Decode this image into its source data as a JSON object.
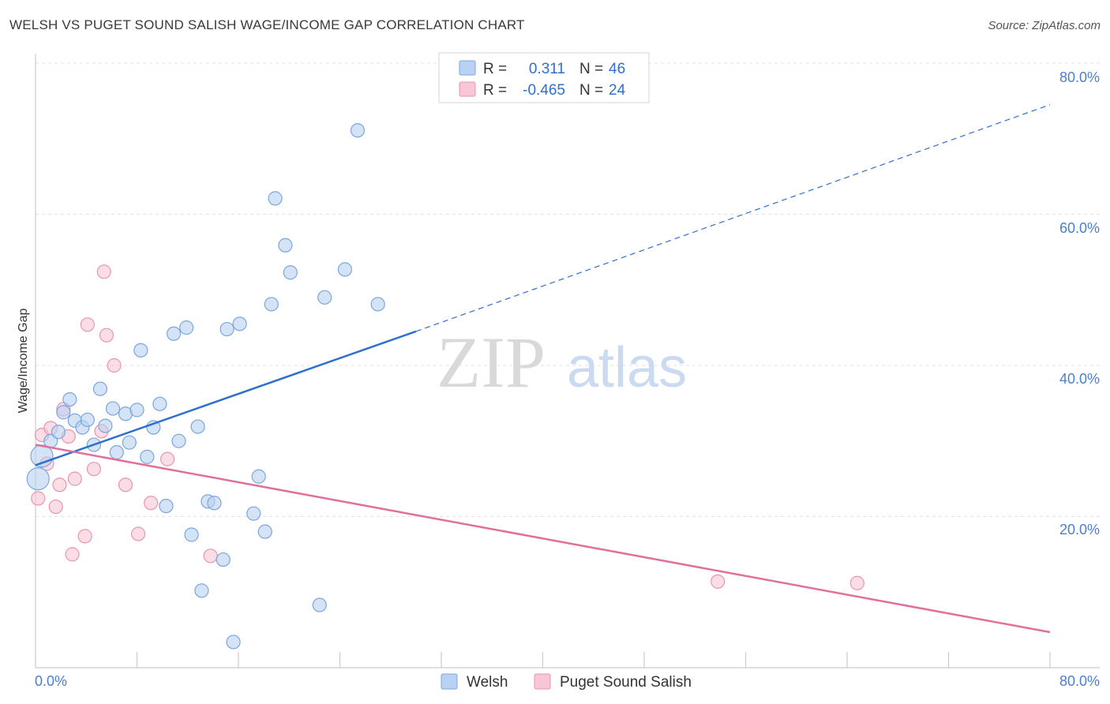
{
  "title": "WELSH VS PUGET SOUND SALISH WAGE/INCOME GAP CORRELATION CHART",
  "source": "Source: ZipAtlas.com",
  "watermark": {
    "zip": "ZIP",
    "atlas": "atlas"
  },
  "legend": {
    "rows": [
      {
        "r_label": "R =",
        "r_value": "0.311",
        "n_label": "N =",
        "n_value": "46"
      },
      {
        "r_label": "R =",
        "r_value": "-0.465",
        "n_label": "N =",
        "n_value": "24"
      }
    ]
  },
  "bottom_legend": {
    "welsh": "Welsh",
    "puget": "Puget Sound Salish"
  },
  "axes": {
    "ylabel": "Wage/Income Gap",
    "x_min_label": "0.0%",
    "x_max_label": "80.0%",
    "y_ticks": [
      "80.0%",
      "60.0%",
      "40.0%",
      "20.0%"
    ]
  },
  "colors": {
    "welsh_fill": "#b9d1f2",
    "welsh_stroke": "#7aa6df",
    "welsh_line": "#2f6fcf",
    "puget_fill": "#f8c6d5",
    "puget_stroke": "#e995b0",
    "puget_line": "#e0709a"
  },
  "chart_data": {
    "type": "scatter",
    "xlabel": "",
    "ylabel": "Wage/Income Gap",
    "xlim": [
      0,
      80
    ],
    "ylim": [
      0,
      80
    ],
    "grid": true,
    "series": [
      {
        "name": "Welsh",
        "points": [
          [
            0.2,
            25.0
          ],
          [
            0.5,
            28.0
          ],
          [
            1.2,
            30.0
          ],
          [
            1.8,
            31.2
          ],
          [
            2.2,
            33.8
          ],
          [
            2.7,
            35.5
          ],
          [
            3.1,
            32.7
          ],
          [
            3.7,
            31.8
          ],
          [
            4.1,
            32.8
          ],
          [
            4.6,
            29.5
          ],
          [
            5.1,
            36.9
          ],
          [
            5.5,
            32.0
          ],
          [
            6.1,
            34.3
          ],
          [
            6.4,
            28.5
          ],
          [
            7.1,
            33.6
          ],
          [
            7.4,
            29.8
          ],
          [
            8.0,
            34.1
          ],
          [
            8.3,
            42.0
          ],
          [
            8.8,
            27.9
          ],
          [
            9.3,
            31.8
          ],
          [
            9.8,
            34.9
          ],
          [
            10.3,
            21.4
          ],
          [
            10.9,
            44.2
          ],
          [
            11.3,
            30.0
          ],
          [
            11.9,
            45.0
          ],
          [
            12.3,
            17.6
          ],
          [
            12.8,
            31.9
          ],
          [
            13.1,
            10.2
          ],
          [
            13.6,
            22.0
          ],
          [
            14.1,
            21.8
          ],
          [
            14.8,
            14.3
          ],
          [
            15.1,
            44.8
          ],
          [
            15.6,
            3.4
          ],
          [
            16.1,
            45.5
          ],
          [
            17.2,
            20.4
          ],
          [
            17.6,
            25.3
          ],
          [
            18.1,
            18.0
          ],
          [
            18.6,
            48.1
          ],
          [
            18.9,
            62.1
          ],
          [
            19.7,
            55.9
          ],
          [
            20.1,
            52.3
          ],
          [
            22.4,
            8.3
          ],
          [
            22.8,
            49.0
          ],
          [
            24.4,
            52.7
          ],
          [
            25.4,
            71.1
          ],
          [
            27.0,
            48.1
          ]
        ],
        "trend": {
          "x": [
            0,
            30
          ],
          "y": [
            26.8,
            44.5
          ]
        },
        "trend_extended": {
          "x": [
            30,
            80
          ],
          "y": [
            44.5,
            74.5
          ]
        }
      },
      {
        "name": "Puget Sound Salish",
        "points": [
          [
            0.2,
            22.4
          ],
          [
            0.5,
            30.8
          ],
          [
            0.9,
            27.0
          ],
          [
            1.2,
            31.7
          ],
          [
            1.6,
            21.3
          ],
          [
            1.9,
            24.2
          ],
          [
            2.2,
            34.2
          ],
          [
            2.6,
            30.6
          ],
          [
            2.9,
            15.0
          ],
          [
            3.1,
            25.0
          ],
          [
            3.9,
            17.4
          ],
          [
            4.1,
            45.4
          ],
          [
            4.6,
            26.3
          ],
          [
            5.2,
            31.3
          ],
          [
            5.4,
            52.4
          ],
          [
            5.6,
            44.0
          ],
          [
            6.2,
            40.0
          ],
          [
            7.1,
            24.2
          ],
          [
            8.1,
            17.7
          ],
          [
            9.1,
            21.8
          ],
          [
            10.4,
            27.6
          ],
          [
            13.8,
            14.8
          ],
          [
            53.8,
            11.4
          ],
          [
            64.8,
            11.2
          ]
        ],
        "trend": {
          "x": [
            0,
            80
          ],
          "y": [
            29.5,
            4.7
          ]
        }
      }
    ]
  }
}
